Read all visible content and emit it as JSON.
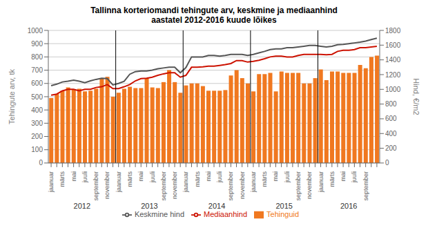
{
  "chart_data": {
    "type": "bar",
    "title": "Tallinna korteriomandi tehingute arv, keskmine ja mediaanhind\naastatel 2012-2016 kuude lõikes",
    "categories": [
      "jaanuar",
      null,
      "märts",
      null,
      "mai",
      null,
      "juuli",
      null,
      "september",
      null,
      "november",
      null,
      "jaanuar",
      null,
      "märts",
      null,
      "mai",
      null,
      "juuli",
      null,
      "september",
      null,
      "november",
      null,
      "jaanuar",
      null,
      "märts",
      null,
      "mai",
      null,
      "juuli",
      null,
      "september",
      null,
      "november",
      null,
      "jaanuar",
      null,
      "märts",
      null,
      "mai",
      null,
      "juuli",
      null,
      "september",
      null,
      "november",
      null,
      "jaanuar",
      null,
      "märts",
      null,
      "mai",
      null,
      "juuli",
      null,
      "september",
      null,
      null
    ],
    "series": [
      {
        "name": "Tehinguid",
        "type": "bar",
        "color": "#F07820",
        "values": [
          490,
          520,
          545,
          570,
          555,
          560,
          540,
          545,
          560,
          640,
          650,
          500,
          530,
          560,
          575,
          565,
          565,
          640,
          570,
          565,
          610,
          700,
          610,
          530,
          585,
          600,
          600,
          580,
          545,
          545,
          545,
          550,
          660,
          700,
          640,
          600,
          540,
          670,
          670,
          680,
          540,
          690,
          680,
          680,
          680,
          600,
          600,
          640,
          705,
          625,
          690,
          690,
          680,
          680,
          680,
          740,
          715,
          800,
          810
        ]
      },
      {
        "name": "Keskmine hind",
        "type": "line",
        "color": "#555555",
        "axis": "y2",
        "values": [
          1050,
          1070,
          1100,
          1110,
          1125,
          1110,
          1090,
          1115,
          1135,
          1150,
          1145,
          1060,
          1080,
          1110,
          1205,
          1240,
          1250,
          1250,
          1260,
          1280,
          1290,
          1300,
          1300,
          1225,
          1295,
          1440,
          1440,
          1440,
          1460,
          1460,
          1450,
          1460,
          1475,
          1475,
          1475,
          1460,
          1475,
          1495,
          1515,
          1540,
          1550,
          1550,
          1565,
          1565,
          1575,
          1585,
          1595,
          1595,
          1585,
          1575,
          1585,
          1605,
          1610,
          1620,
          1630,
          1640,
          1655,
          1675,
          1695
        ]
      },
      {
        "name": "Mediaanhind",
        "type": "line",
        "color": "#CC1100",
        "axis": "y2",
        "values": [
          920,
          935,
          980,
          1000,
          1000,
          980,
          1000,
          1000,
          1025,
          1035,
          1065,
          1010,
          1010,
          1035,
          1065,
          1115,
          1145,
          1150,
          1165,
          1190,
          1210,
          1225,
          1225,
          1165,
          1190,
          1300,
          1300,
          1305,
          1315,
          1315,
          1325,
          1335,
          1350,
          1390,
          1390,
          1370,
          1380,
          1395,
          1415,
          1440,
          1450,
          1450,
          1440,
          1440,
          1460,
          1475,
          1475,
          1475,
          1475,
          1470,
          1475,
          1515,
          1530,
          1530,
          1540,
          1565,
          1565,
          1575,
          1585
        ]
      }
    ],
    "ylabel": "Tehingute arv, tk",
    "y2label": "Hind, €/m2",
    "ylim": [
      0,
      1000
    ],
    "yticks": [
      0,
      100,
      200,
      300,
      400,
      500,
      600,
      700,
      800,
      900,
      1000
    ],
    "y2lim": [
      0,
      1800
    ],
    "y2ticks": [
      0,
      200,
      400,
      600,
      800,
      1000,
      1200,
      1400,
      1600,
      1800
    ],
    "grid": true,
    "legend": "bottom",
    "annotations": [
      {
        "text": "2012",
        "from": 0,
        "to": 11
      },
      {
        "text": "2013",
        "from": 12,
        "to": 23
      },
      {
        "text": "2014",
        "from": 24,
        "to": 35
      },
      {
        "text": "2015",
        "from": 36,
        "to": 47
      },
      {
        "text": "2016",
        "from": 48,
        "to": 58
      }
    ]
  }
}
